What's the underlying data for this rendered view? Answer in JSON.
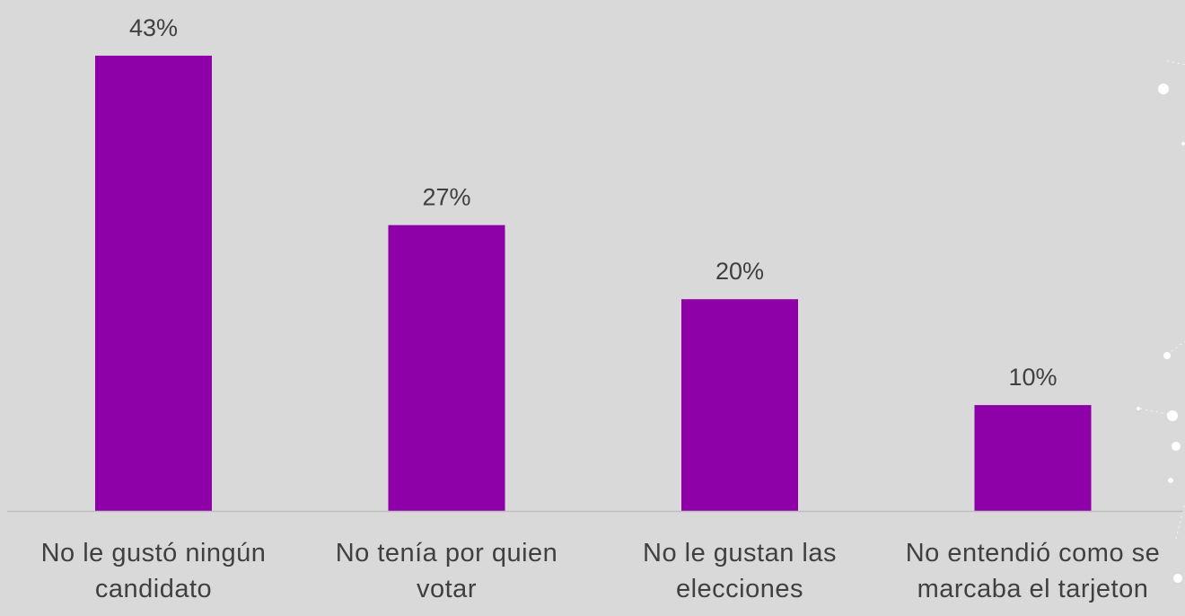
{
  "chart_data": {
    "type": "bar",
    "title": "",
    "xlabel": "",
    "ylabel": "",
    "ylim": [
      0,
      45
    ],
    "categories": [
      [
        "No le gustó ningún",
        "candidato"
      ],
      [
        "No tenía por quien",
        "votar"
      ],
      [
        "No le gustan las",
        "elecciones"
      ],
      [
        "No entendió como se",
        "marcaba el tarjeton"
      ]
    ],
    "values": [
      43,
      27,
      20,
      10
    ],
    "value_labels": [
      "43%",
      "27%",
      "20%",
      "10%"
    ],
    "grid": false,
    "legend": "none",
    "colors": {
      "bar": "#8e00a8",
      "background": "#d9d9d9",
      "axis": "#bfbfbf",
      "text": "#404040"
    }
  }
}
